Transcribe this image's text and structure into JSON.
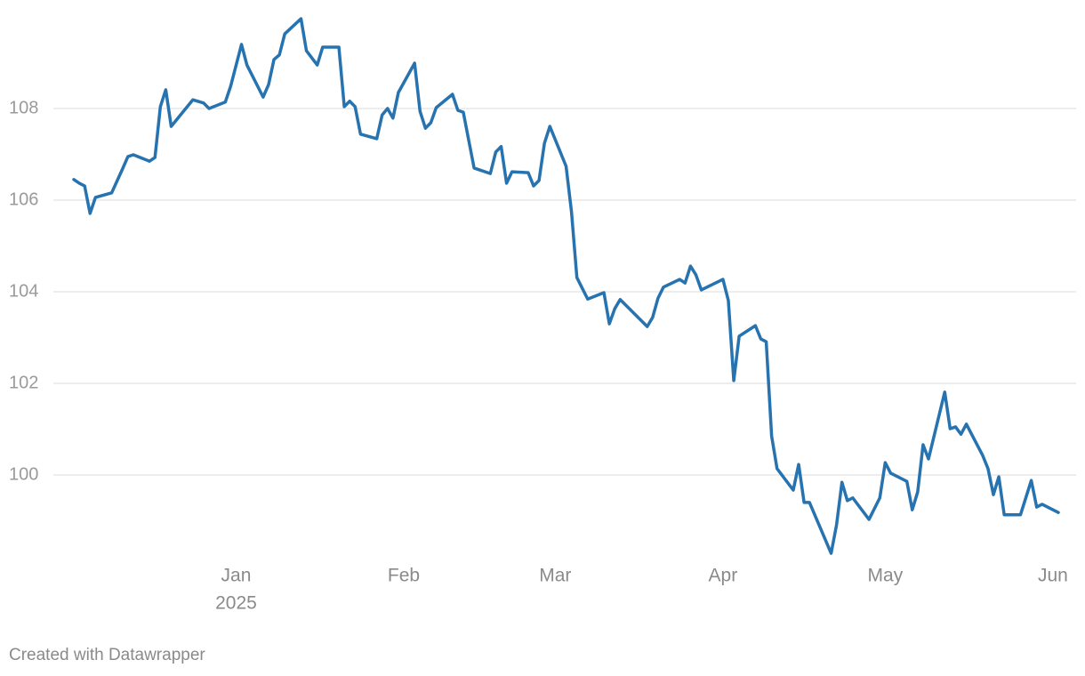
{
  "chart_data": {
    "type": "line",
    "color": "#2673b0",
    "grid": true,
    "x": [
      -30,
      -29,
      -28,
      -27,
      -26,
      -23,
      -21,
      -20,
      -19,
      -16,
      -15,
      -14,
      -13,
      -12,
      -8,
      -6,
      -5,
      -2,
      -1,
      1,
      2,
      5,
      6,
      7,
      8,
      9,
      12,
      13,
      15,
      16,
      19,
      20,
      21,
      22,
      23,
      26,
      27,
      28,
      29,
      30,
      33,
      34,
      35,
      36,
      37,
      40,
      41,
      42,
      44,
      47,
      48,
      49,
      50,
      51,
      54,
      55,
      56,
      57,
      58,
      61,
      62,
      63,
      65,
      68,
      69,
      70,
      71,
      76,
      77,
      78,
      79,
      82,
      83,
      84,
      85,
      86,
      90,
      91,
      92,
      93,
      96,
      97,
      98,
      99,
      100,
      103,
      104,
      105,
      106,
      110,
      111,
      112,
      113,
      114,
      117,
      119,
      120,
      121,
      124,
      125,
      126,
      127,
      128,
      131,
      132,
      133,
      134,
      135,
      138,
      139,
      140,
      141,
      142,
      145,
      147,
      148,
      149,
      152
    ],
    "values": [
      106.45,
      106.37,
      106.31,
      105.71,
      106.06,
      106.16,
      106.68,
      106.95,
      106.99,
      106.85,
      106.93,
      108.04,
      108.41,
      107.61,
      108.19,
      108.12,
      108.0,
      108.14,
      108.49,
      109.4,
      108.95,
      108.25,
      108.52,
      109.07,
      109.17,
      109.63,
      109.96,
      109.26,
      108.95,
      109.34,
      109.34,
      108.04,
      108.16,
      108.04,
      107.44,
      107.34,
      107.86,
      108.0,
      107.79,
      108.35,
      108.99,
      107.94,
      107.57,
      107.69,
      108.02,
      108.31,
      107.96,
      107.92,
      106.7,
      106.58,
      107.05,
      107.17,
      106.37,
      106.62,
      106.6,
      106.31,
      106.43,
      107.24,
      107.61,
      106.74,
      105.75,
      104.31,
      103.84,
      103.98,
      103.3,
      103.63,
      103.83,
      103.24,
      103.44,
      103.86,
      104.1,
      104.27,
      104.19,
      104.56,
      104.37,
      104.04,
      104.27,
      103.81,
      102.06,
      103.03,
      103.26,
      102.97,
      102.91,
      100.85,
      100.14,
      99.67,
      100.23,
      99.4,
      99.4,
      98.29,
      98.91,
      99.84,
      99.44,
      99.5,
      99.03,
      99.5,
      100.27,
      100.04,
      99.86,
      99.24,
      99.63,
      100.66,
      100.35,
      101.81,
      101.01,
      101.05,
      100.89,
      101.11,
      100.43,
      100.14,
      99.57,
      99.96,
      99.13,
      99.13,
      99.88,
      99.3,
      99.36,
      99.18
    ],
    "xlim": [
      -30,
      152
    ],
    "xticks": [
      {
        "value": 0,
        "label": "Jan"
      },
      {
        "value": 31,
        "label": "Feb"
      },
      {
        "value": 59,
        "label": "Mar"
      },
      {
        "value": 90,
        "label": "Apr"
      },
      {
        "value": 120,
        "label": "May"
      },
      {
        "value": 151,
        "label": "Jun"
      }
    ],
    "year_label": "2025",
    "ylim": [
      98.2,
      110
    ],
    "yticks": [
      100,
      102,
      104,
      106,
      108
    ],
    "footer": "Created with Datawrapper"
  }
}
